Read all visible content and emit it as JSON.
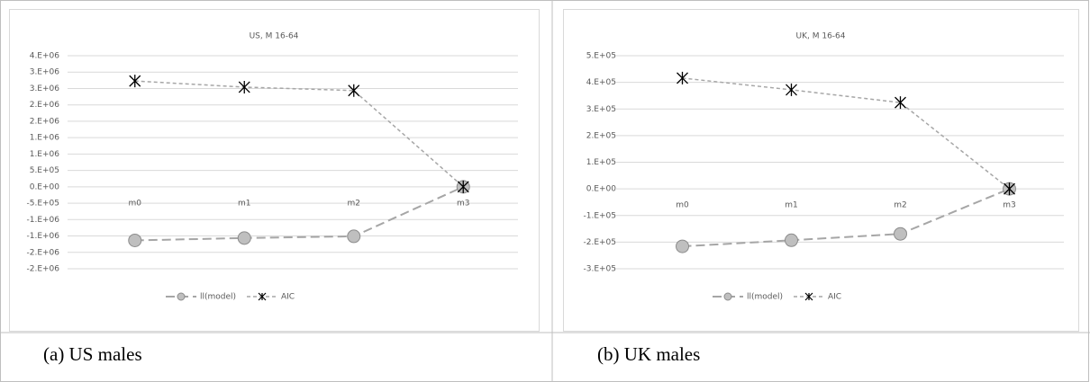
{
  "chart_data": [
    {
      "type": "line",
      "title": "US, M 16-64",
      "caption": "(a)  US males",
      "categories": [
        "m0",
        "m1",
        "m2",
        "m3"
      ],
      "series": [
        {
          "name": "ll(model)",
          "color": "#a6a6a6",
          "values": [
            -1570000,
            -1500000,
            -1450000,
            0
          ]
        },
        {
          "name": "AIC",
          "color": "#a6a6a6",
          "values": [
            3100000,
            2920000,
            2820000,
            0
          ]
        }
      ],
      "ylim": [
        -2400000,
        3840000
      ],
      "yticks": [
        {
          "value": 3840000,
          "label": "4.E+06"
        },
        {
          "value": 3360000,
          "label": "3.E+06"
        },
        {
          "value": 2880000,
          "label": "3.E+06"
        },
        {
          "value": 2400000,
          "label": "2.E+06"
        },
        {
          "value": 1920000,
          "label": "2.E+06"
        },
        {
          "value": 1440000,
          "label": "1.E+06"
        },
        {
          "value": 960000,
          "label": "1.E+06"
        },
        {
          "value": 480000,
          "label": "5.E+05"
        },
        {
          "value": 0,
          "label": "0.E+00"
        },
        {
          "value": -480000,
          "label": "-5.E+05"
        },
        {
          "value": -960000,
          "label": "-1.E+06"
        },
        {
          "value": -1440000,
          "label": "-1.E+06"
        },
        {
          "value": -1920000,
          "label": "-2.E+06"
        },
        {
          "value": -2400000,
          "label": "-2.E+06"
        }
      ],
      "grid": true,
      "legend": "bottom"
    },
    {
      "type": "line",
      "title": "UK, M 16-64",
      "caption": "(b)  UK males",
      "categories": [
        "m0",
        "m1",
        "m2",
        "m3"
      ],
      "series": [
        {
          "name": "ll(model)",
          "color": "#a6a6a6",
          "values": [
            -216000,
            -193000,
            -169000,
            0
          ]
        },
        {
          "name": "AIC",
          "color": "#a6a6a6",
          "values": [
            416000,
            372000,
            324000,
            0
          ]
        }
      ],
      "ylim": [
        -300000,
        500000
      ],
      "yticks": [
        {
          "value": 500000,
          "label": "5.E+05"
        },
        {
          "value": 400000,
          "label": "4.E+05"
        },
        {
          "value": 300000,
          "label": "3.E+05"
        },
        {
          "value": 200000,
          "label": "2.E+05"
        },
        {
          "value": 100000,
          "label": "1.E+05"
        },
        {
          "value": 0,
          "label": "0.E+00"
        },
        {
          "value": -100000,
          "label": "-1.E+05"
        },
        {
          "value": -200000,
          "label": "-2.E+05"
        },
        {
          "value": -300000,
          "label": "-3.E+05"
        }
      ],
      "grid": true,
      "legend": "bottom"
    }
  ]
}
